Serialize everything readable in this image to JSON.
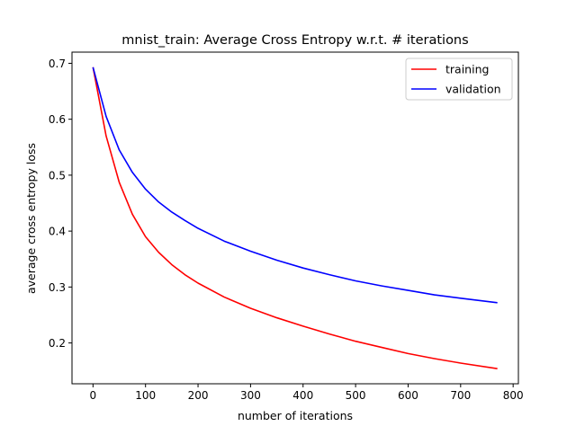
{
  "chart_data": {
    "type": "line",
    "title": "mnist_train: Average Cross Entropy w.r.t. # iterations",
    "xlabel": "number of iterations",
    "ylabel": "average cross entropy loss",
    "xlim": [
      -40,
      810
    ],
    "ylim": [
      0.127,
      0.72
    ],
    "xticks": [
      0,
      100,
      200,
      300,
      400,
      500,
      600,
      700,
      800
    ],
    "yticks": [
      0.2,
      0.3,
      0.4,
      0.5,
      0.6,
      0.7
    ],
    "xtick_labels": [
      "0",
      "100",
      "200",
      "300",
      "400",
      "500",
      "600",
      "700",
      "800"
    ],
    "ytick_labels": [
      "0.2",
      "0.3",
      "0.4",
      "0.5",
      "0.6",
      "0.7"
    ],
    "grid": false,
    "legend_position": "top-right",
    "series": [
      {
        "name": "training",
        "color": "#ff0000",
        "x": [
          0,
          25,
          50,
          75,
          100,
          125,
          150,
          175,
          200,
          250,
          300,
          350,
          400,
          450,
          500,
          550,
          600,
          650,
          700,
          770
        ],
        "y": [
          0.693,
          0.57,
          0.487,
          0.43,
          0.39,
          0.362,
          0.34,
          0.322,
          0.307,
          0.282,
          0.262,
          0.245,
          0.23,
          0.216,
          0.203,
          0.192,
          0.181,
          0.172,
          0.164,
          0.154
        ]
      },
      {
        "name": "validation",
        "color": "#0000ff",
        "x": [
          0,
          25,
          50,
          75,
          100,
          125,
          150,
          175,
          200,
          250,
          300,
          350,
          400,
          450,
          500,
          550,
          600,
          650,
          700,
          770
        ],
        "y": [
          0.693,
          0.605,
          0.545,
          0.505,
          0.475,
          0.452,
          0.434,
          0.419,
          0.405,
          0.382,
          0.364,
          0.348,
          0.334,
          0.322,
          0.311,
          0.302,
          0.294,
          0.286,
          0.28,
          0.272
        ]
      }
    ]
  }
}
